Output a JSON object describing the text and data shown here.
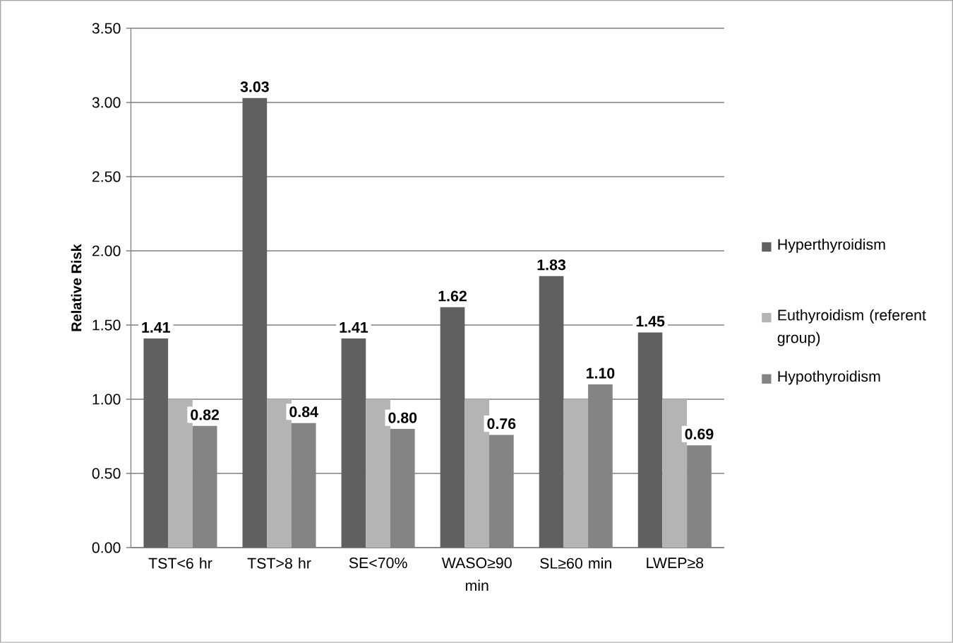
{
  "chart_data": {
    "type": "bar",
    "ylabel": "Relative Risk",
    "categories": [
      "TST<6 hr",
      "TST>8 hr",
      "SE<70%",
      "WASO≥90 min",
      "SL≥60 min",
      "LWEP≥8"
    ],
    "series": [
      {
        "name": "Hyperthyroidism",
        "color": "#606060",
        "values": [
          1.41,
          3.03,
          1.41,
          1.62,
          1.83,
          1.45
        ],
        "value_labels": [
          "1.41",
          "3.03",
          "1.41",
          "1.62",
          "1.83",
          "1.45"
        ]
      },
      {
        "name": "Euthyroidism (referent group)",
        "color": "#b4b4b4",
        "values": [
          1.0,
          1.0,
          1.0,
          1.0,
          1.0,
          1.0
        ]
      },
      {
        "name": "Hypothyroidism",
        "color": "#848484",
        "values": [
          0.82,
          0.84,
          0.8,
          0.76,
          1.1,
          0.69
        ],
        "value_labels": [
          "0.82",
          "0.84",
          "0.80",
          "0.76",
          "1.10",
          "0.69"
        ]
      }
    ],
    "ylim": [
      0,
      3.5
    ],
    "yticks": [
      {
        "value": 0,
        "label": "0.00"
      },
      {
        "value": 0.5,
        "label": "0.50"
      },
      {
        "value": 1,
        "label": "1.00"
      },
      {
        "value": 1.5,
        "label": "1.50"
      },
      {
        "value": 2,
        "label": "2.00"
      },
      {
        "value": 2.5,
        "label": "2.50"
      },
      {
        "value": 3,
        "label": "3.00"
      },
      {
        "value": 3.5,
        "label": "3.50"
      }
    ],
    "grid": "y",
    "legend": "right"
  }
}
